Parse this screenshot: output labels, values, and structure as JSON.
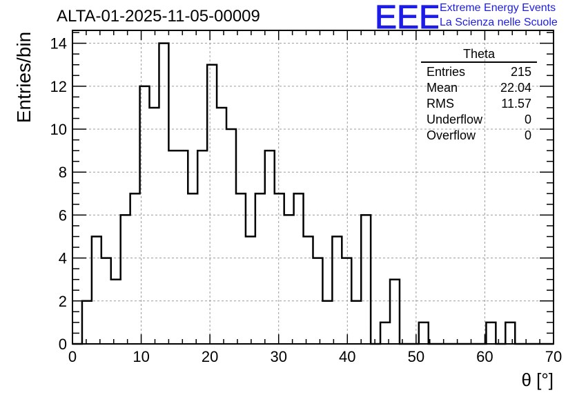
{
  "header": {
    "run_title": "ALTA-01-2025-11-05-00009",
    "logo_text": "EEE",
    "logo_line1": "Extreme Energy Events",
    "logo_line2": "La Scienza nelle Scuole"
  },
  "stats_box": {
    "title": "Theta",
    "rows": [
      {
        "label": "Entries",
        "value": "215"
      },
      {
        "label": "Mean",
        "value": "22.04"
      },
      {
        "label": "RMS",
        "value": "11.57"
      },
      {
        "label": "Underflow",
        "value": "0"
      },
      {
        "label": "Overflow",
        "value": "0"
      }
    ]
  },
  "chart_data": {
    "type": "histogram",
    "title": "ALTA-01-2025-11-05-00009",
    "xlabel": "θ [°]",
    "ylabel": "Entries/bin",
    "xlim": [
      0,
      70
    ],
    "ylim": [
      0,
      14.6
    ],
    "x_ticks": [
      0,
      10,
      20,
      30,
      40,
      50,
      60,
      70
    ],
    "y_ticks": [
      0,
      2,
      4,
      6,
      8,
      10,
      12,
      14
    ],
    "grid": true,
    "bin_width": 1.4,
    "bin_start": 0,
    "values": [
      0,
      2,
      5,
      4,
      3,
      6,
      7,
      12,
      11,
      14,
      9,
      9,
      7,
      9,
      13,
      11,
      10,
      7,
      5,
      7,
      9,
      7,
      6,
      7,
      5,
      4,
      2,
      5,
      4,
      2,
      6,
      0,
      1,
      3,
      0,
      0,
      1,
      0,
      0,
      0,
      0,
      0,
      0,
      1,
      0,
      1,
      0,
      0,
      0,
      0
    ],
    "line_color": "#000000"
  }
}
